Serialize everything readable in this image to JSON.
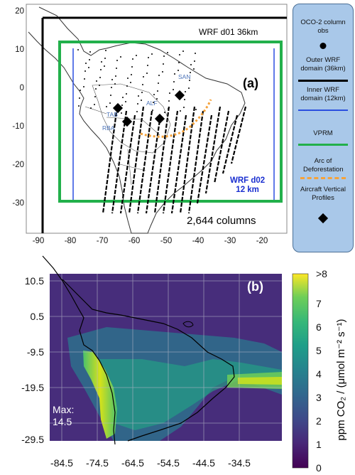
{
  "panel_a": {
    "label": "(a)",
    "outer_domain_label": "WRF d01 36km",
    "inner_domain_label_1": "WRF d02",
    "inner_domain_label_2": "12 km",
    "columns_label": "2,644 columns",
    "y_ticks": [
      "20",
      "10",
      "0",
      "-10",
      "-20",
      "-30"
    ],
    "x_ticks": [
      "-90",
      "-80",
      "-70",
      "-60",
      "-50",
      "-40",
      "-30",
      "-20"
    ],
    "sites": [
      {
        "name": "TAB",
        "lon": -66,
        "lat": -5.5
      },
      {
        "name": "RBA",
        "lon": -62,
        "lat": -9
      },
      {
        "name": "ALF",
        "lon": -53,
        "lat": -8.5
      },
      {
        "name": "SAN",
        "lon": -47,
        "lat": -2.5
      }
    ],
    "legend": {
      "oco2": "OCO-2 column obs",
      "outer": "Outer WRF domain (36km)",
      "inner": "Inner WRF domain (12km)",
      "vprm": "VPRM",
      "arc": "Arc of Deforestation",
      "aircraft": "Aircraft Vertical Profiles"
    },
    "colors": {
      "outer": "#000000",
      "inner": "#2b4fe0",
      "vprm": "#22b04b",
      "arc": "#f5a23a",
      "legend_bg": "#a9c8e9"
    }
  },
  "panel_b": {
    "label": "(b)",
    "max_label_1": "Max:",
    "max_label_2": "14.5",
    "y_ticks": [
      "10.5",
      "0.5",
      "-9.5",
      "-19.5",
      "-29.5"
    ],
    "x_ticks": [
      "-84.5",
      "-74.5",
      "-64.5",
      "-54.5",
      "-44.5",
      "-34.5"
    ],
    "colorbar": {
      "label": "ppm CO₂ / (μmol m⁻² s⁻¹)",
      "ticks": [
        "0",
        "1",
        "2",
        "3",
        "4",
        "5",
        "6",
        "7",
        ">8"
      ],
      "colormap": "viridis"
    }
  }
}
